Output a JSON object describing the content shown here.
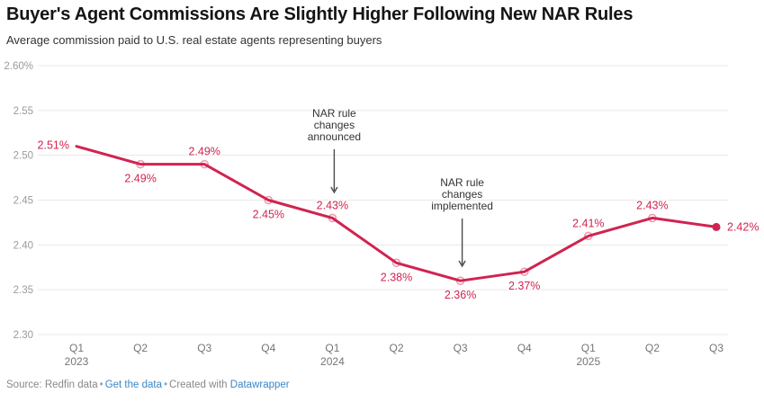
{
  "header": {
    "title": "Buyer's Agent Commissions Are Slightly Higher Following New NAR Rules",
    "subtitle": "Average commission paid to U.S. real estate agents representing buyers"
  },
  "colors": {
    "line": "#d02450",
    "point_label": "#d02450",
    "grid": "#e8e8e8",
    "y_axis_text": "#9b9b9b",
    "x_axis_text": "#757575",
    "annotation_text": "#333333",
    "arrow": "#4a4a4a",
    "link": "#3a87c8",
    "footer_text": "#888888",
    "title_text": "#141414"
  },
  "chart_data": {
    "type": "line",
    "title": "Buyer's Agent Commissions Are Slightly Higher Following New NAR Rules",
    "subtitle": "Average commission paid to U.S. real estate agents representing buyers",
    "x": [
      "Q1 2023",
      "Q2 2023",
      "Q3 2023",
      "Q4 2023",
      "Q1 2024",
      "Q2 2024",
      "Q3 2024",
      "Q4 2024",
      "Q1 2025",
      "Q2 2025",
      "Q3 2025"
    ],
    "values": [
      2.51,
      2.49,
      2.49,
      2.45,
      2.43,
      2.38,
      2.36,
      2.37,
      2.41,
      2.43,
      2.42
    ],
    "point_labels": [
      "2.51%",
      "2.49%",
      "2.49%",
      "2.45%",
      "2.43%",
      "2.38%",
      "2.36%",
      "2.37%",
      "2.41%",
      "2.43%",
      "2.42%"
    ],
    "label_placement": [
      "left",
      "below",
      "above",
      "below",
      "above",
      "below",
      "below",
      "below",
      "above",
      "above",
      "right"
    ],
    "x_tick_quarters": [
      "Q1",
      "Q2",
      "Q3",
      "Q4",
      "Q1",
      "Q2",
      "Q3",
      "Q4",
      "Q1",
      "Q2",
      "Q3"
    ],
    "x_tick_years": [
      "2023",
      "",
      "",
      "",
      "2024",
      "",
      "",
      "",
      "2025",
      "",
      ""
    ],
    "xlabel": "",
    "ylabel": "",
    "ylim": [
      2.3,
      2.6
    ],
    "yticks": [
      2.6,
      2.55,
      2.5,
      2.45,
      2.4,
      2.35,
      2.3
    ],
    "ytick_labels": [
      "2.60%",
      "2.55",
      "2.50",
      "2.45",
      "2.40",
      "2.35",
      "2.30"
    ],
    "grid": "horizontal",
    "legend": "none",
    "annotations": [
      {
        "text_lines": [
          "NAR rule",
          "changes",
          "announced"
        ],
        "point_index": 4
      },
      {
        "text_lines": [
          "NAR rule",
          "changes",
          "implemented"
        ],
        "point_index": 6
      }
    ]
  },
  "footer": {
    "source": "Source: Redfin data",
    "separator": "•",
    "get_data_label": "Get the data",
    "created_with": "Created with",
    "tool_label": "Datawrapper"
  }
}
